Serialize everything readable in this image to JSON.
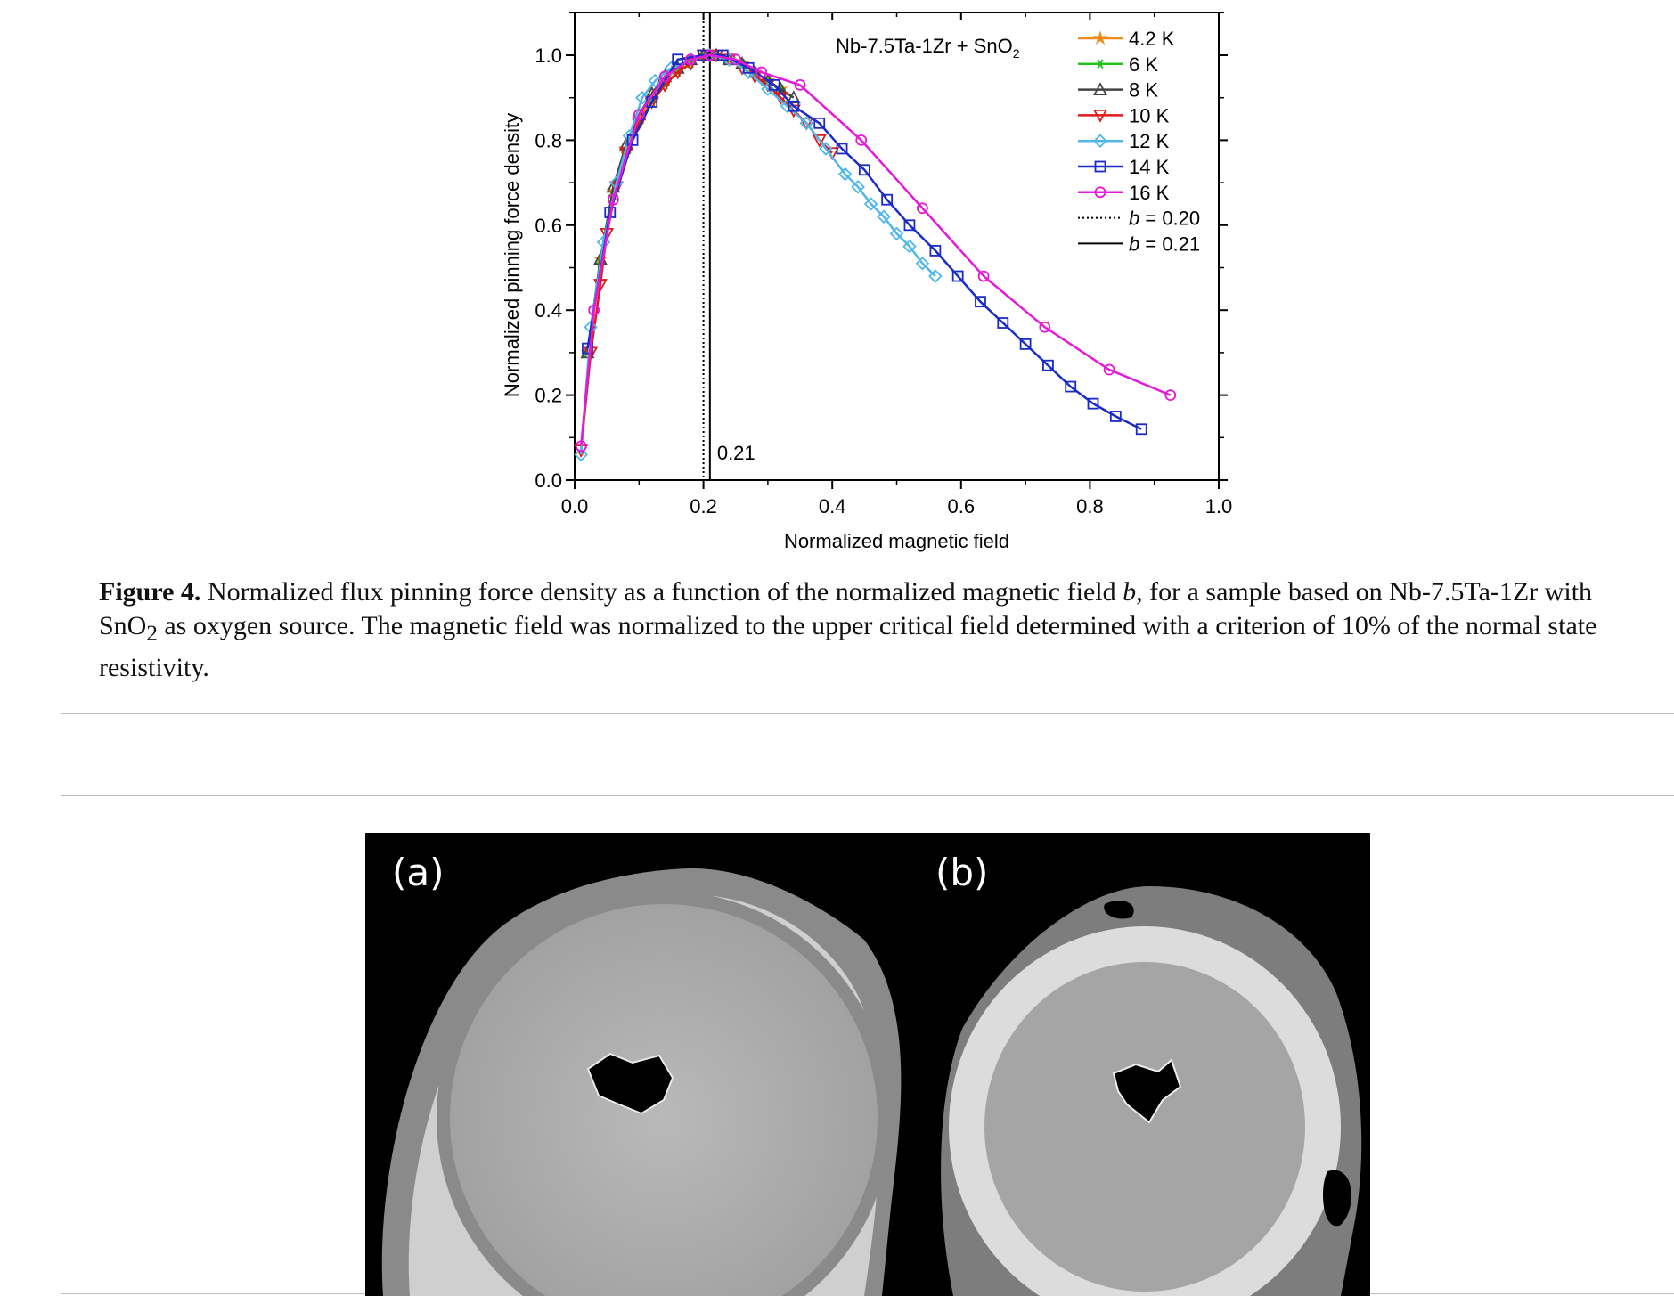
{
  "figure": {
    "caption_label": "Figure 4.",
    "caption_part1": " Normalized flux pinning force density as a function of the normalized magnetic field ",
    "caption_var": "b",
    "caption_part2": ", for a sample based on Nb-7.5Ta-1Zr with SnO",
    "caption_sub": "2",
    "caption_part3": " as oxygen source. The magnetic field was normalized to the upper critical field determined with a criterion of 10% of the normal state resistivity."
  },
  "chart_data": {
    "type": "line",
    "title_main": "Nb-7.5Ta-1Zr + SnO",
    "title_sub": "2",
    "xlabel": "Normalized magnetic field",
    "ylabel": "Normalized pinning force density",
    "xlim": [
      0,
      1
    ],
    "ylim": [
      0,
      1.1
    ],
    "xticks": [
      "0.0",
      "0.2",
      "0.4",
      "0.6",
      "0.8",
      "1.0"
    ],
    "yticks": [
      "0.0",
      "0.2",
      "0.4",
      "0.6",
      "0.8",
      "1.0"
    ],
    "legend_position": "top-right",
    "annotation": "0.21",
    "series": [
      {
        "name": "4.2 K",
        "color": "#f08a1c",
        "marker": "star",
        "x": [
          0.02,
          0.04,
          0.06,
          0.08,
          0.1,
          0.12,
          0.14,
          0.16,
          0.18,
          0.2,
          0.22,
          0.24,
          0.26,
          0.28,
          0.3,
          0.32
        ],
        "y": [
          0.3,
          0.52,
          0.68,
          0.78,
          0.85,
          0.9,
          0.94,
          0.97,
          0.99,
          1.0,
          1.0,
          0.99,
          0.98,
          0.96,
          0.94,
          0.92
        ]
      },
      {
        "name": "6 K",
        "color": "#22c21c",
        "marker": "asterisk",
        "x": [
          0.02,
          0.04,
          0.06,
          0.08,
          0.1,
          0.12,
          0.14,
          0.16,
          0.18,
          0.2,
          0.22,
          0.24,
          0.26,
          0.28,
          0.3,
          0.32
        ],
        "y": [
          0.3,
          0.51,
          0.67,
          0.77,
          0.84,
          0.89,
          0.93,
          0.96,
          0.98,
          1.0,
          1.0,
          0.99,
          0.98,
          0.96,
          0.94,
          0.92
        ]
      },
      {
        "name": "8 K",
        "color": "#444444",
        "marker": "triangle-up",
        "x": [
          0.02,
          0.04,
          0.06,
          0.08,
          0.1,
          0.12,
          0.14,
          0.16,
          0.18,
          0.2,
          0.22,
          0.24,
          0.26,
          0.28,
          0.3,
          0.32,
          0.34
        ],
        "y": [
          0.3,
          0.52,
          0.69,
          0.79,
          0.86,
          0.91,
          0.95,
          0.97,
          0.99,
          1.0,
          1.0,
          0.99,
          0.98,
          0.96,
          0.94,
          0.92,
          0.9
        ]
      },
      {
        "name": "10 K",
        "color": "#e01a1a",
        "marker": "triangle-down",
        "x": [
          0.01,
          0.025,
          0.04,
          0.05,
          0.065,
          0.08,
          0.1,
          0.12,
          0.14,
          0.16,
          0.18,
          0.2,
          0.22,
          0.24,
          0.26,
          0.28,
          0.3,
          0.32,
          0.34,
          0.36,
          0.38,
          0.4
        ],
        "y": [
          0.07,
          0.3,
          0.46,
          0.58,
          0.69,
          0.77,
          0.84,
          0.89,
          0.93,
          0.96,
          0.98,
          1.0,
          1.0,
          0.99,
          0.97,
          0.95,
          0.93,
          0.9,
          0.87,
          0.84,
          0.8,
          0.77
        ]
      },
      {
        "name": "12 K",
        "color": "#4fb8e8",
        "marker": "diamond",
        "x": [
          0.01,
          0.025,
          0.045,
          0.065,
          0.085,
          0.105,
          0.125,
          0.15,
          0.18,
          0.21,
          0.24,
          0.27,
          0.3,
          0.33,
          0.36,
          0.39,
          0.42,
          0.44,
          0.46,
          0.48,
          0.5,
          0.52,
          0.54,
          0.56
        ],
        "y": [
          0.06,
          0.36,
          0.56,
          0.7,
          0.81,
          0.9,
          0.94,
          0.97,
          0.99,
          1.0,
          0.99,
          0.96,
          0.92,
          0.88,
          0.84,
          0.78,
          0.72,
          0.69,
          0.65,
          0.62,
          0.58,
          0.55,
          0.51,
          0.48
        ]
      },
      {
        "name": "14 K",
        "color": "#1a2bc8",
        "marker": "square",
        "x": [
          0.02,
          0.055,
          0.09,
          0.12,
          0.16,
          0.2,
          0.23,
          0.27,
          0.31,
          0.34,
          0.38,
          0.415,
          0.45,
          0.485,
          0.52,
          0.56,
          0.595,
          0.63,
          0.665,
          0.7,
          0.735,
          0.77,
          0.805,
          0.84,
          0.88
        ],
        "y": [
          0.31,
          0.63,
          0.8,
          0.89,
          0.99,
          1.0,
          1.0,
          0.97,
          0.93,
          0.88,
          0.84,
          0.78,
          0.73,
          0.66,
          0.6,
          0.54,
          0.48,
          0.42,
          0.37,
          0.32,
          0.27,
          0.22,
          0.18,
          0.15,
          0.12
        ]
      },
      {
        "name": "16 K",
        "color": "#e619d6",
        "marker": "circle",
        "x": [
          0.01,
          0.03,
          0.06,
          0.1,
          0.14,
          0.18,
          0.21,
          0.25,
          0.29,
          0.35,
          0.445,
          0.54,
          0.635,
          0.73,
          0.83,
          0.925
        ],
        "y": [
          0.08,
          0.4,
          0.66,
          0.86,
          0.95,
          0.99,
          1.0,
          0.99,
          0.96,
          0.93,
          0.8,
          0.64,
          0.48,
          0.36,
          0.26,
          0.2
        ]
      }
    ],
    "vlines": [
      {
        "name": "b = 0.20",
        "var": "b",
        "eq": " = 0.20",
        "x": 0.2,
        "style": "dotted"
      },
      {
        "name": "b = 0.21",
        "var": "b",
        "eq": " = 0.21",
        "x": 0.21,
        "style": "solid"
      }
    ]
  },
  "micrograph": {
    "label_a": "(a)",
    "label_b": "(b)"
  }
}
